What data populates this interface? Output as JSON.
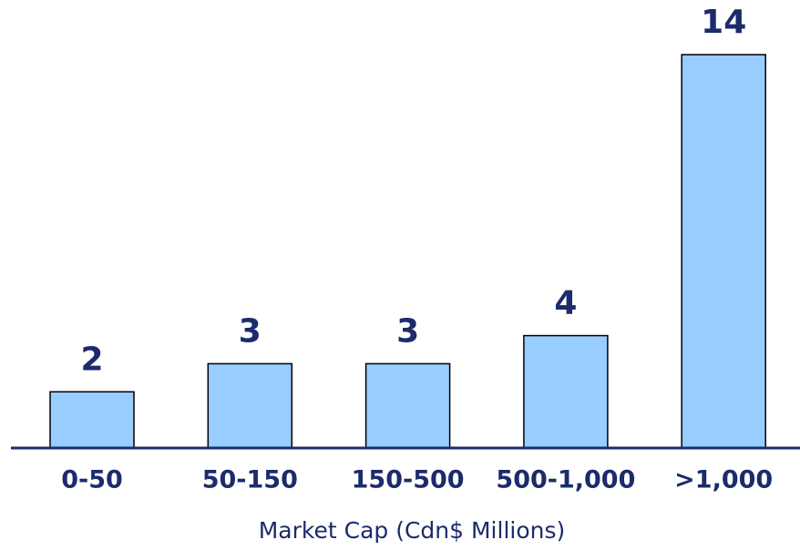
{
  "chart_data": {
    "type": "bar",
    "x_label": "Market Cap (Cdn$ Millions)",
    "categories": [
      "0-50",
      "50-150",
      "150-500",
      "500-1,000",
      ">1,000"
    ],
    "values": [
      2,
      3,
      3,
      4,
      14
    ],
    "color": "#99ccff"
  }
}
